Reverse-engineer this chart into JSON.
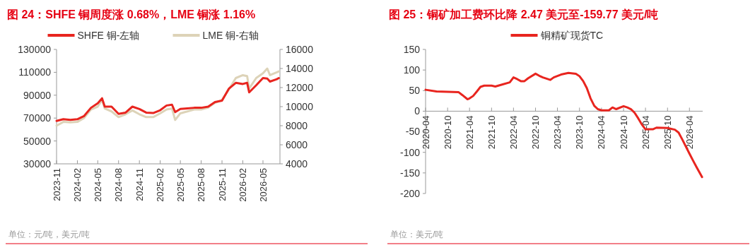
{
  "chart_data": [
    {
      "type": "line",
      "title": "图 24：SHFE 铜周度涨 0.68%，LME 铜涨 1.16%",
      "annotations": [
        "单位：元/吨，美元/吨"
      ],
      "legend": "top",
      "grid": false,
      "xlim": [
        "2023-11-01",
        "2026-07-15"
      ],
      "xticks": [
        "2023-11",
        "2024-02",
        "2024-05",
        "2024-08",
        "2024-11",
        "2025-02",
        "2025-05",
        "2025-08",
        "2025-11",
        "2026-02",
        "2026-05"
      ],
      "ylim": [
        30000,
        130000
      ],
      "yticks": [
        30000,
        50000,
        70000,
        90000,
        110000,
        130000
      ],
      "y2lim": [
        4000,
        16000
      ],
      "y2ticks": [
        4000,
        6000,
        8000,
        10000,
        12000,
        14000,
        16000
      ],
      "series": [
        {
          "name": "SHFE 铜-左轴",
          "color": "#e8251f",
          "x": [
            "2023-11-01",
            "2023-12-01",
            "2024-01-01",
            "2024-02-01",
            "2024-03-01",
            "2024-04-01",
            "2024-05-01",
            "2024-05-20",
            "2024-06-01",
            "2024-07-01",
            "2024-08-01",
            "2024-09-01",
            "2024-10-01",
            "2024-11-01",
            "2024-12-01",
            "2025-01-01",
            "2025-02-01",
            "2025-03-01",
            "2025-03-25",
            "2025-04-08",
            "2025-05-01",
            "2025-06-01",
            "2025-07-01",
            "2025-08-01",
            "2025-09-01",
            "2025-10-01",
            "2025-11-01",
            "2025-12-01",
            "2026-01-01",
            "2026-02-01",
            "2026-02-20",
            "2026-03-01",
            "2026-04-01",
            "2026-05-01",
            "2026-05-20",
            "2026-06-01",
            "2026-07-01",
            "2026-07-10"
          ],
          "values": [
            67500,
            69000,
            68500,
            69000,
            71700,
            79000,
            83000,
            87300,
            80000,
            80000,
            73700,
            74800,
            80000,
            77900,
            74800,
            74400,
            76900,
            81000,
            81700,
            75200,
            78000,
            78500,
            79000,
            79000,
            80000,
            84000,
            85200,
            95600,
            100800,
            99800,
            100800,
            92500,
            98700,
            105000,
            104500,
            101900,
            104000,
            105000
          ]
        },
        {
          "name": "LME 铜-右轴",
          "color": "#ddd3b8",
          "axis": "y2",
          "x": [
            "2023-11-01",
            "2023-12-01",
            "2024-01-01",
            "2024-02-01",
            "2024-03-01",
            "2024-04-01",
            "2024-05-01",
            "2024-05-20",
            "2024-06-01",
            "2024-07-01",
            "2024-08-01",
            "2024-09-01",
            "2024-10-01",
            "2024-11-01",
            "2024-12-01",
            "2025-01-01",
            "2025-02-01",
            "2025-03-01",
            "2025-03-25",
            "2025-04-08",
            "2025-05-01",
            "2025-06-01",
            "2025-07-01",
            "2025-08-01",
            "2025-09-01",
            "2025-10-01",
            "2025-11-01",
            "2025-12-01",
            "2026-01-01",
            "2026-02-01",
            "2026-02-20",
            "2026-03-01",
            "2026-04-01",
            "2026-05-01",
            "2026-05-20",
            "2026-06-01",
            "2026-07-01",
            "2026-07-10"
          ],
          "values": [
            8000,
            8400,
            8350,
            8400,
            8800,
            9700,
            10000,
            10700,
            9800,
            9500,
            8900,
            9200,
            9600,
            9200,
            8900,
            8900,
            9300,
            9700,
            9800,
            8600,
            9300,
            9500,
            9700,
            9700,
            9900,
            10400,
            10700,
            11800,
            13000,
            13300,
            13200,
            11900,
            13000,
            13500,
            14000,
            13300,
            13600,
            13700
          ]
        }
      ]
    },
    {
      "type": "line",
      "title": "图 25：铜矿加工费环比降 2.47 美元至-159.77 美元/吨",
      "annotations": [
        "单位：美元/吨"
      ],
      "legend": "top",
      "grid": false,
      "xlim": [
        "2020-04-01",
        "2026-07-20"
      ],
      "xticks": [
        "2020-04",
        "2020-10",
        "2021-04",
        "2021-10",
        "2022-04",
        "2022-10",
        "2023-04",
        "2023-10",
        "2024-04",
        "2024-10",
        "2025-04",
        "2025-10",
        "2026-04"
      ],
      "ylim": [
        -200,
        150
      ],
      "yticks": [
        -200,
        -150,
        -100,
        -50,
        0,
        50,
        100,
        150
      ],
      "series": [
        {
          "name": "铜精矿现货TC",
          "color": "#e8251f",
          "x": [
            "2020-04-01",
            "2020-07-01",
            "2020-10-01",
            "2021-01-01",
            "2021-02-01",
            "2021-03-15",
            "2021-04-01",
            "2021-05-01",
            "2021-06-01",
            "2021-07-01",
            "2021-08-01",
            "2021-10-01",
            "2021-11-01",
            "2022-01-01",
            "2022-03-01",
            "2022-04-01",
            "2022-05-01",
            "2022-06-01",
            "2022-07-01",
            "2022-08-01",
            "2022-10-01",
            "2022-11-01",
            "2022-12-01",
            "2023-02-01",
            "2023-03-01",
            "2023-05-01",
            "2023-07-01",
            "2023-09-01",
            "2023-10-01",
            "2023-11-01",
            "2023-12-01",
            "2024-01-01",
            "2024-02-01",
            "2024-03-01",
            "2024-04-01",
            "2024-06-01",
            "2024-07-01",
            "2024-08-01",
            "2024-10-01",
            "2024-11-01",
            "2024-12-01",
            "2025-01-01",
            "2025-02-01",
            "2025-03-01",
            "2025-04-01",
            "2025-06-01",
            "2025-07-01",
            "2025-10-01",
            "2025-12-01",
            "2026-01-01",
            "2026-02-01",
            "2026-04-01",
            "2026-05-01",
            "2026-06-01",
            "2026-07-15"
          ],
          "values": [
            52,
            48,
            47,
            46,
            39,
            29,
            31,
            37,
            48,
            59,
            62,
            62,
            60,
            65,
            70,
            82,
            78,
            73,
            73,
            80,
            91,
            86,
            82,
            76,
            82,
            89,
            93,
            91,
            85,
            73,
            56,
            31,
            13,
            5,
            2,
            2,
            9,
            5,
            12,
            9,
            5,
            -4,
            -18,
            -32,
            -44,
            -44,
            -40,
            -41,
            -45,
            -52,
            -69,
            -103,
            -120,
            -137,
            -160
          ]
        }
      ]
    }
  ]
}
